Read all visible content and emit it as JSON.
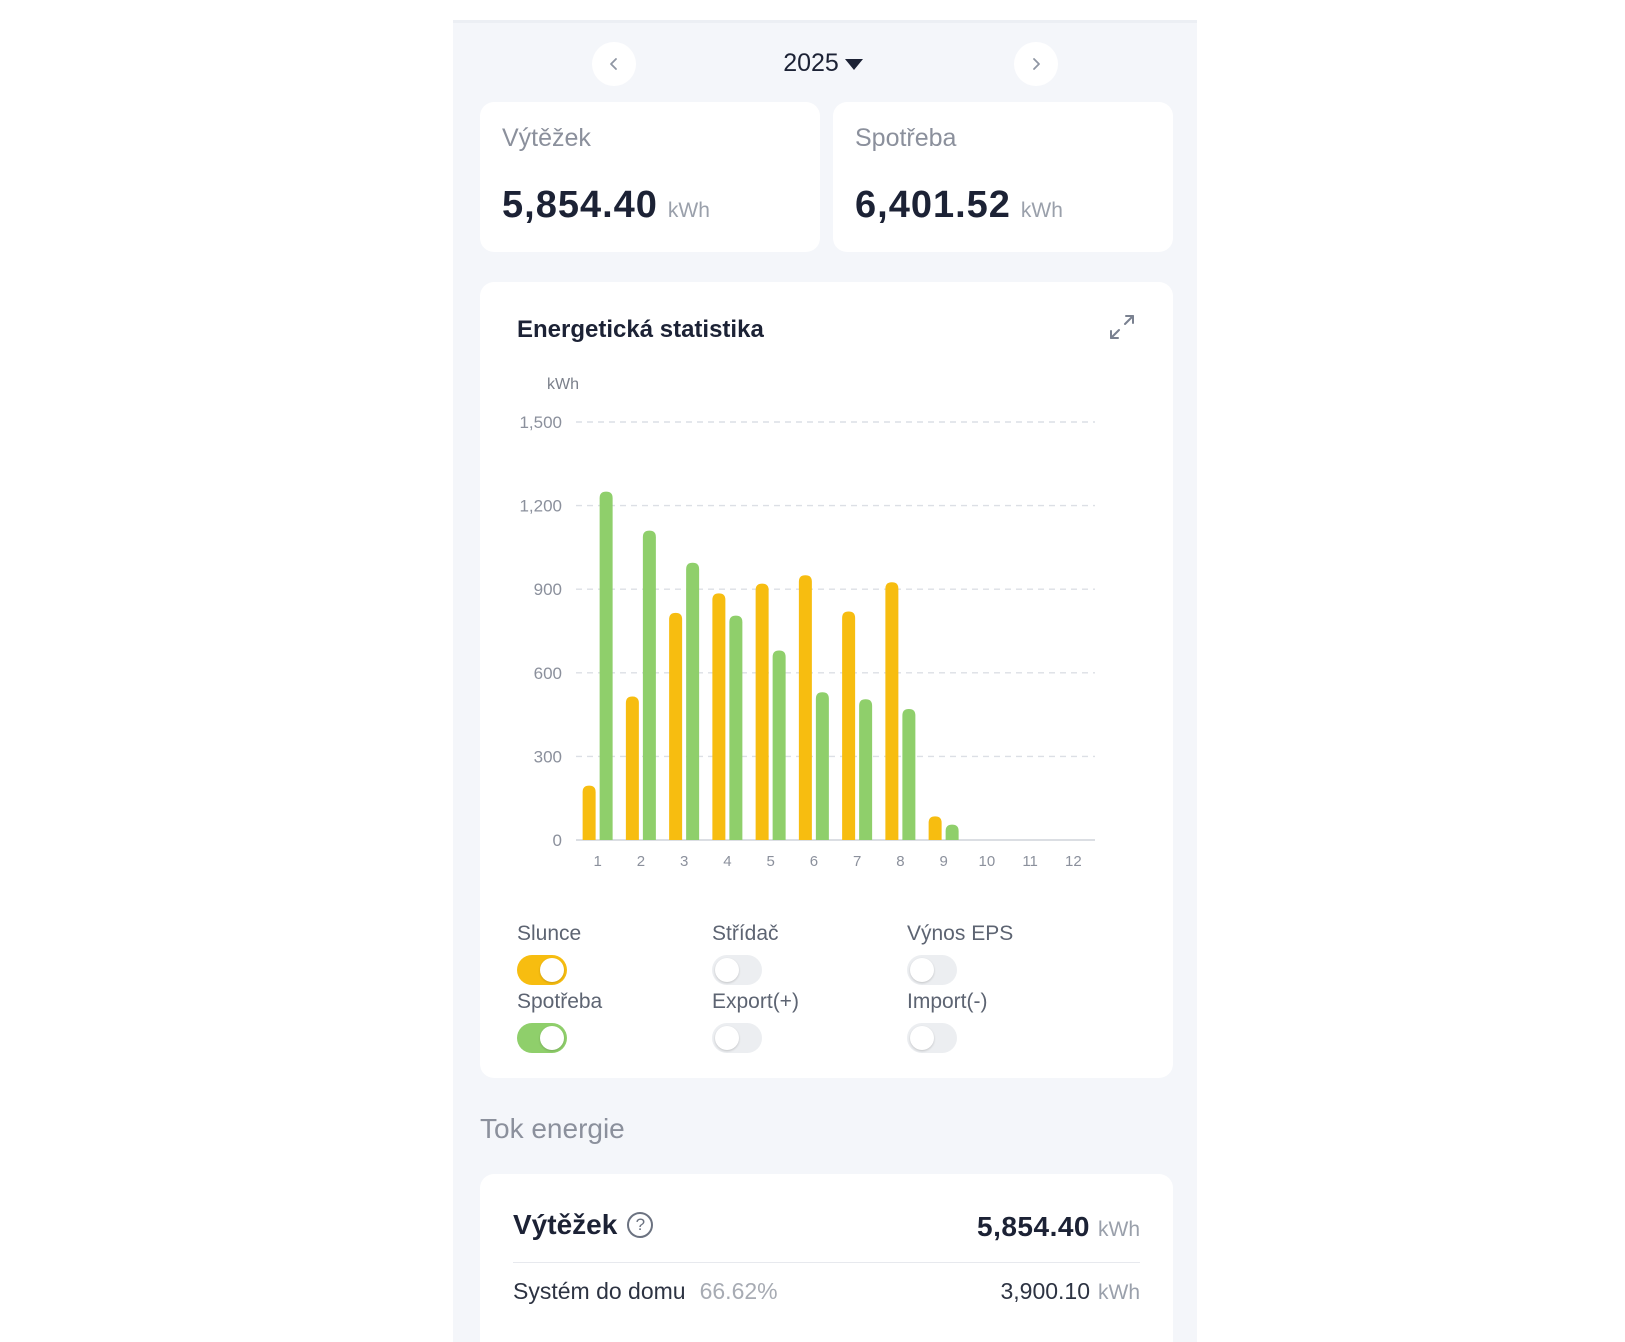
{
  "nav": {
    "year": "2025",
    "prev_icon": "chevron-left-icon",
    "next_icon": "chevron-right-icon"
  },
  "summary": [
    {
      "label": "Výtěžek",
      "value": "5,854.40",
      "unit": "kWh"
    },
    {
      "label": "Spotřeba",
      "value": "6,401.52",
      "unit": "kWh"
    }
  ],
  "chart_card": {
    "title": "Energetická statistika",
    "expand_icon": "expand-icon"
  },
  "chart_data": {
    "type": "bar",
    "ylabel": "kWh",
    "ylim": [
      0,
      1500
    ],
    "yticks": [
      "0",
      "300",
      "600",
      "900",
      "1,200",
      "1,500"
    ],
    "ytick_values": [
      0,
      300,
      600,
      900,
      1200,
      1500
    ],
    "categories": [
      "1",
      "2",
      "3",
      "4",
      "5",
      "6",
      "7",
      "8",
      "9",
      "10",
      "11",
      "12"
    ],
    "grid": true,
    "series": [
      {
        "name": "Slunce",
        "color": "#f7bd10",
        "values": [
          195,
          515,
          815,
          885,
          920,
          950,
          820,
          925,
          85,
          0,
          0,
          0
        ]
      },
      {
        "name": "Spotřeba",
        "color": "#8fcf6b",
        "values": [
          1250,
          1110,
          995,
          805,
          680,
          530,
          505,
          470,
          55,
          0,
          0,
          0
        ]
      }
    ]
  },
  "toggles": [
    {
      "label": "Slunce",
      "on": true,
      "color": "#f7bd10"
    },
    {
      "label": "Střídač",
      "on": false,
      "color": "#eceef1"
    },
    {
      "label": "Výnos EPS",
      "on": false,
      "color": "#eceef1"
    },
    {
      "label": "Spotřeba",
      "on": true,
      "color": "#8fcf6b"
    },
    {
      "label": "Export(+)",
      "on": false,
      "color": "#eceef1"
    },
    {
      "label": "Import(-)",
      "on": false,
      "color": "#eceef1"
    }
  ],
  "flow": {
    "section_title": "Tok energie",
    "head": {
      "label": "Výtěžek",
      "help_icon": "help-icon",
      "value": "5,854.40",
      "unit": "kWh"
    },
    "rows": [
      {
        "label": "Systém do domu",
        "percent": "66.62%",
        "value": "3,900.10",
        "unit": "kWh"
      }
    ]
  }
}
